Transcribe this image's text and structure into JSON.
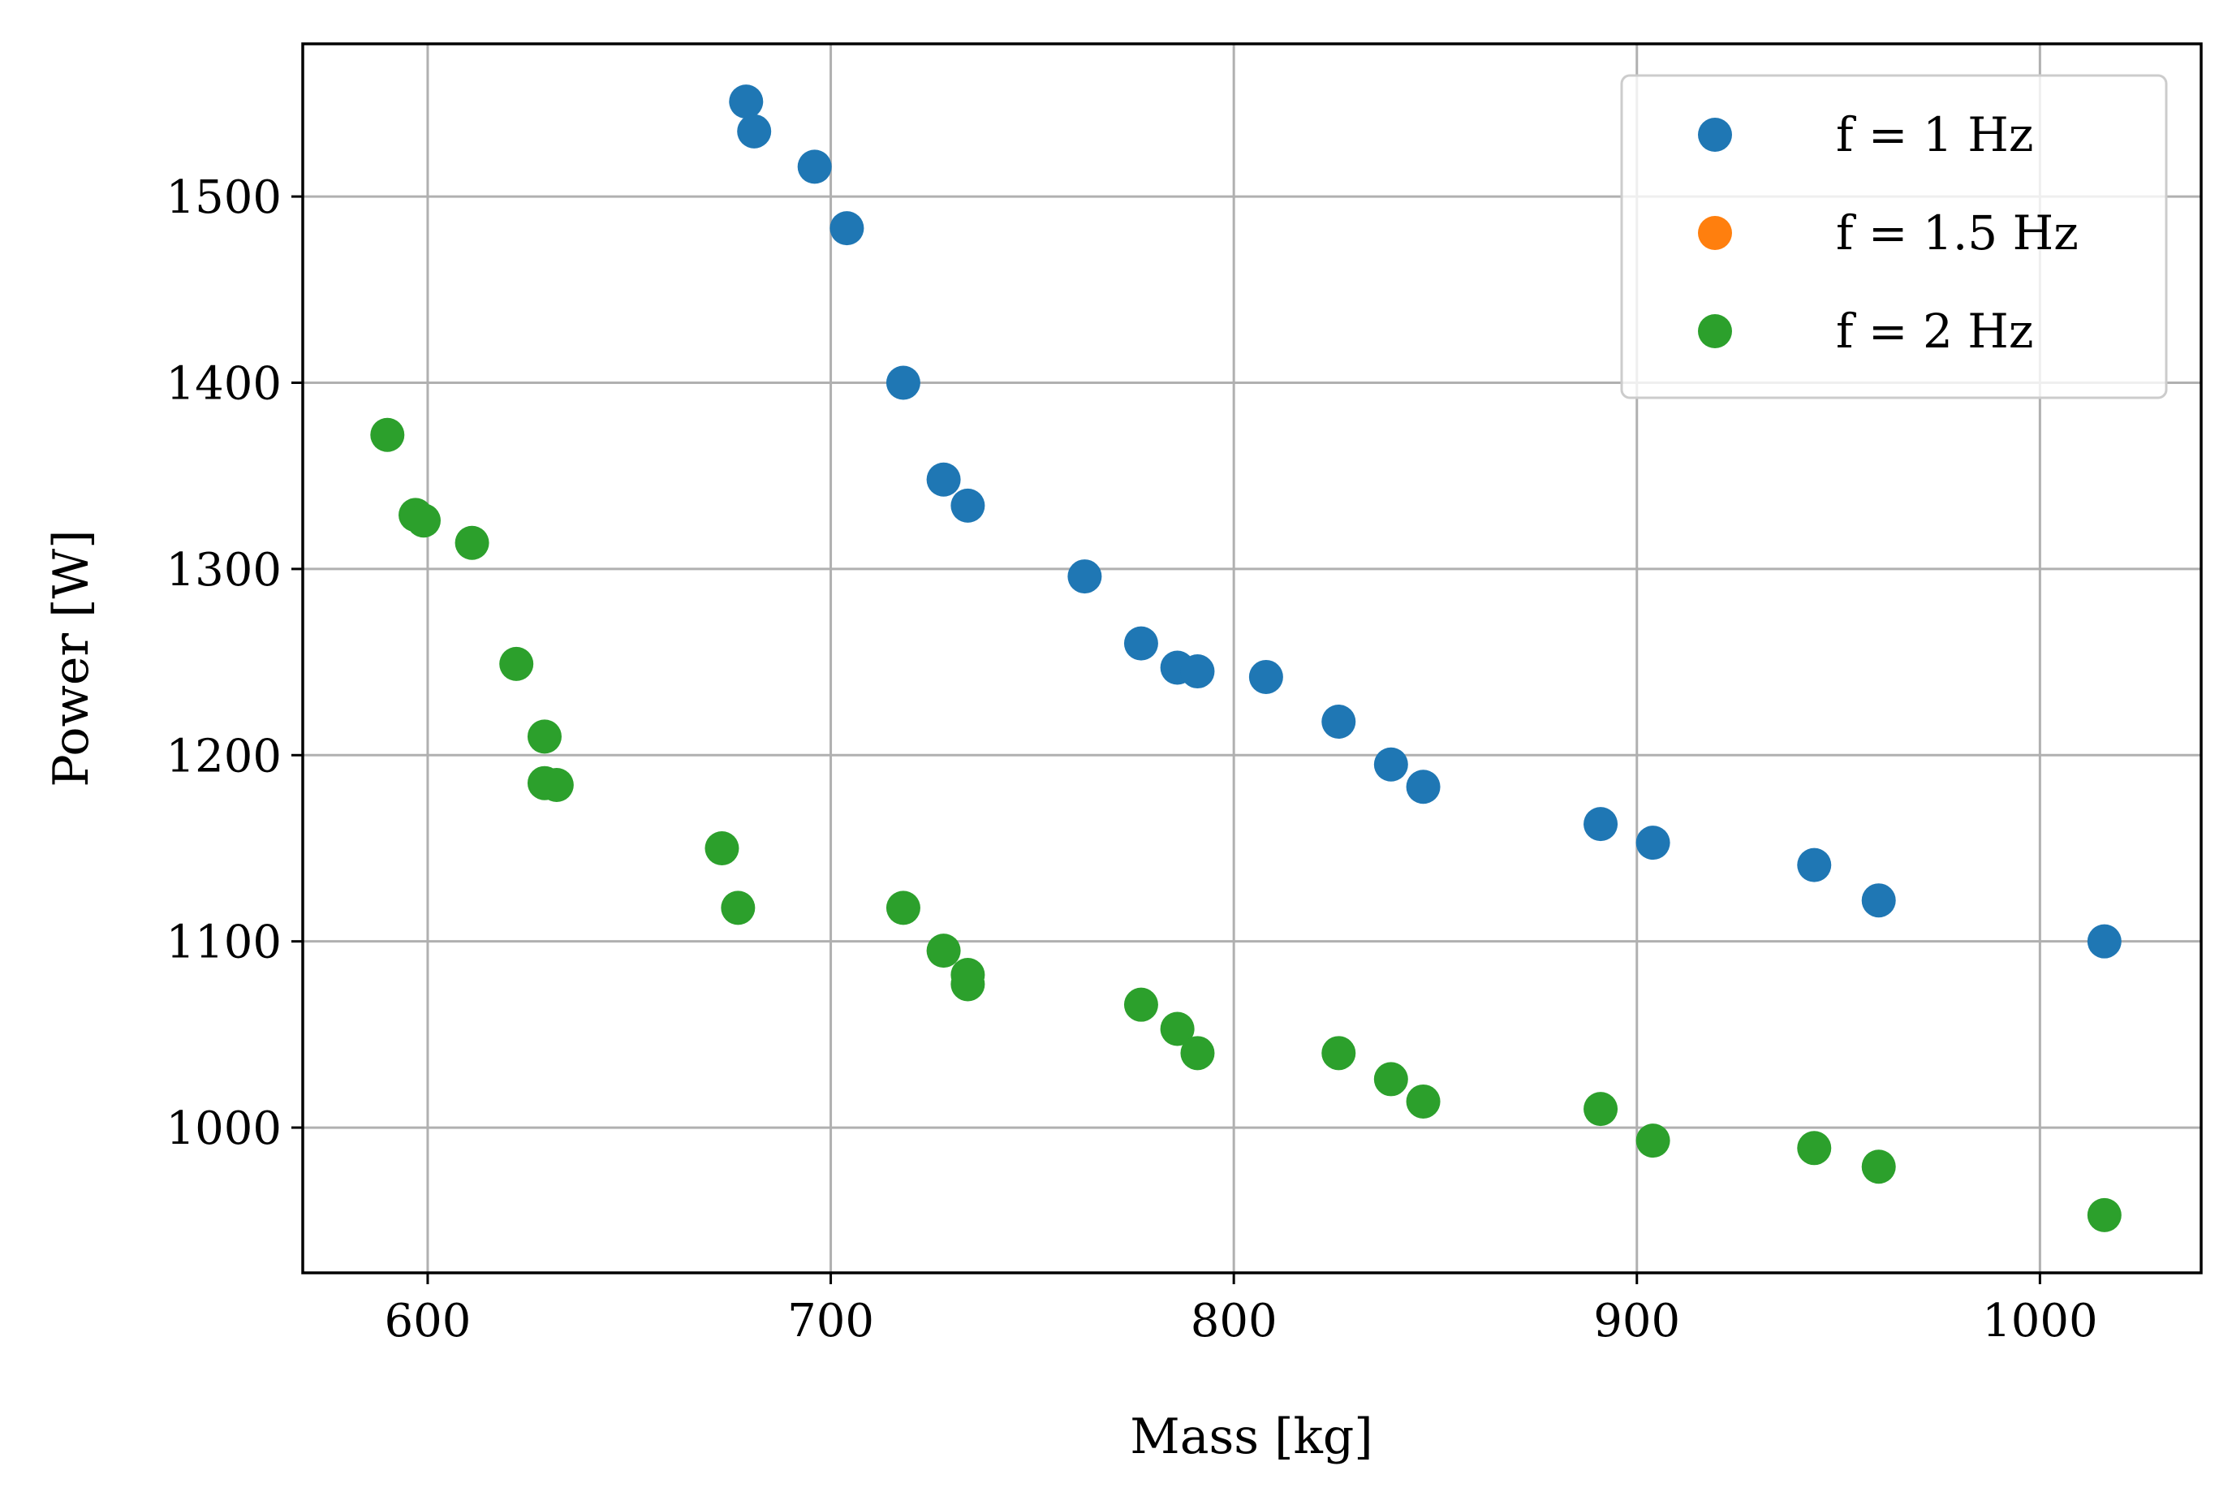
{
  "chart_data": {
    "type": "scatter",
    "title": "",
    "xlabel": "Mass [kg]",
    "ylabel": "Power [W]",
    "xlim": [
      569,
      1040
    ],
    "ylim": [
      922,
      1582
    ],
    "xticks": [
      600,
      700,
      800,
      900,
      1000
    ],
    "yticks": [
      1000,
      1100,
      1200,
      1300,
      1400,
      1500
    ],
    "grid": true,
    "legend_position": "top-right",
    "series": [
      {
        "name": "f = 1 Hz",
        "color": "#1f77b4",
        "points": [
          [
            679,
            1551
          ],
          [
            681,
            1535
          ],
          [
            696,
            1516
          ],
          [
            704,
            1483
          ],
          [
            718,
            1400
          ],
          [
            728,
            1348
          ],
          [
            734,
            1334
          ],
          [
            763,
            1296
          ],
          [
            777,
            1260
          ],
          [
            786,
            1247
          ],
          [
            791,
            1245
          ],
          [
            808,
            1242
          ],
          [
            826,
            1218
          ],
          [
            839,
            1195
          ],
          [
            847,
            1183
          ],
          [
            891,
            1163
          ],
          [
            904,
            1153
          ],
          [
            944,
            1141
          ],
          [
            960,
            1122
          ],
          [
            1016,
            1100
          ]
        ]
      },
      {
        "name": "f = 1.5 Hz",
        "color": "#ff7f0e",
        "points": []
      },
      {
        "name": "f = 2 Hz",
        "color": "#2ca02c",
        "points": [
          [
            590,
            1372
          ],
          [
            597,
            1329
          ],
          [
            599,
            1326
          ],
          [
            611,
            1314
          ],
          [
            622,
            1249
          ],
          [
            629,
            1210
          ],
          [
            629,
            1185
          ],
          [
            632,
            1184
          ],
          [
            673,
            1150
          ],
          [
            677,
            1118
          ],
          [
            718,
            1118
          ],
          [
            728,
            1095
          ],
          [
            734,
            1082
          ],
          [
            734,
            1077
          ],
          [
            777,
            1066
          ],
          [
            786,
            1053
          ],
          [
            791,
            1040
          ],
          [
            826,
            1040
          ],
          [
            839,
            1026
          ],
          [
            847,
            1014
          ],
          [
            891,
            1010
          ],
          [
            904,
            993
          ],
          [
            944,
            989
          ],
          [
            960,
            979
          ],
          [
            1016,
            953
          ]
        ]
      }
    ]
  }
}
